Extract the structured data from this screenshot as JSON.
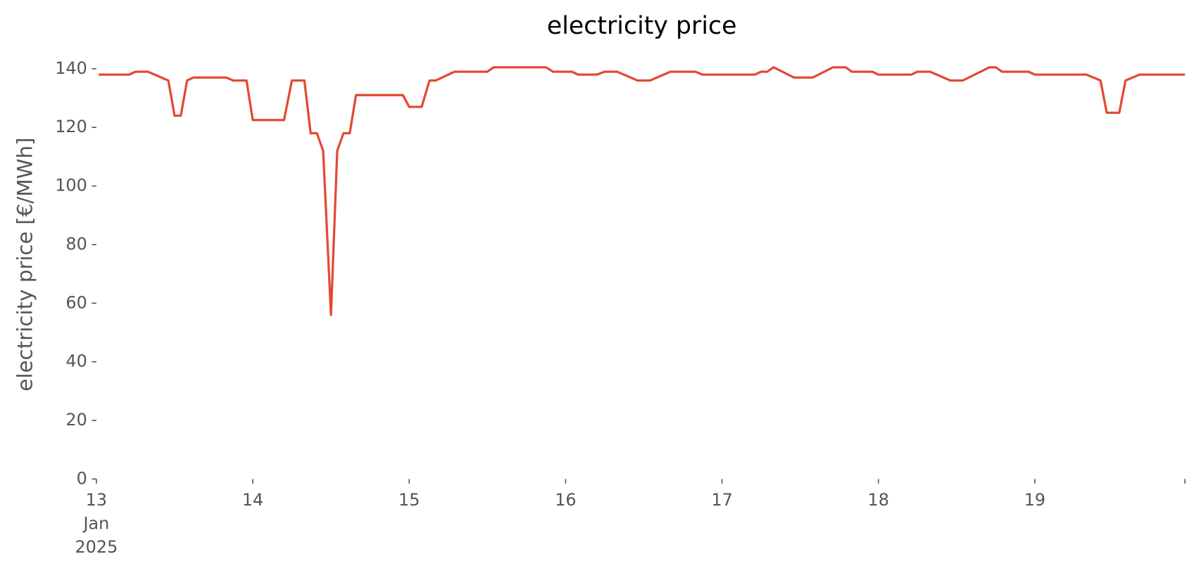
{
  "chart_data": {
    "type": "line",
    "title": "electricity price",
    "y_label": "electricity price [€/MWh]",
    "x": [
      13.015,
      13.21,
      13.25,
      13.33,
      13.46,
      13.5,
      13.54,
      13.58,
      13.62,
      13.83,
      13.875,
      13.96,
      14.0,
      14.2,
      14.25,
      14.33,
      14.37,
      14.41,
      14.45,
      14.5,
      14.54,
      14.58,
      14.62,
      14.66,
      14.96,
      15.0,
      15.08,
      15.13,
      15.17,
      15.29,
      15.5,
      15.54,
      15.875,
      15.92,
      16.04,
      16.08,
      16.2,
      16.25,
      16.33,
      16.46,
      16.54,
      16.67,
      16.83,
      16.875,
      17.21,
      17.25,
      17.29,
      17.33,
      17.46,
      17.58,
      17.71,
      17.79,
      17.83,
      17.96,
      18.0,
      18.21,
      18.25,
      18.33,
      18.46,
      18.54,
      18.71,
      18.75,
      18.79,
      18.96,
      19.0,
      19.33,
      19.42,
      19.46,
      19.54,
      19.58,
      19.67,
      19.96
    ],
    "series": [
      {
        "name": "electricity price",
        "color": "#e24a33",
        "values": [
          138,
          138,
          139,
          139,
          136,
          124,
          124,
          136,
          137,
          137,
          136,
          136,
          122.5,
          122.5,
          136,
          136,
          118,
          118,
          112,
          56,
          112,
          118,
          118,
          131,
          131,
          127,
          127,
          136,
          136,
          139,
          139,
          140.5,
          140.5,
          139,
          139,
          138,
          138,
          139,
          139,
          136,
          136,
          139,
          139,
          138,
          138,
          139,
          139,
          140.5,
          137,
          137,
          140.5,
          140.5,
          139,
          139,
          138,
          138,
          139,
          139,
          136,
          136,
          140.5,
          140.5,
          139,
          139,
          138,
          138,
          136,
          125,
          125,
          136,
          138,
          138
        ]
      }
    ],
    "xlim": [
      13,
      19.96
    ],
    "xticks": [
      {
        "value": 13,
        "label": "13\nJan\n2025"
      },
      14,
      15,
      16,
      17,
      18,
      19
    ],
    "ylim": [
      0,
      140
    ],
    "yticks": [
      0,
      20,
      40,
      60,
      80,
      100,
      120,
      140
    ],
    "grid": false
  }
}
